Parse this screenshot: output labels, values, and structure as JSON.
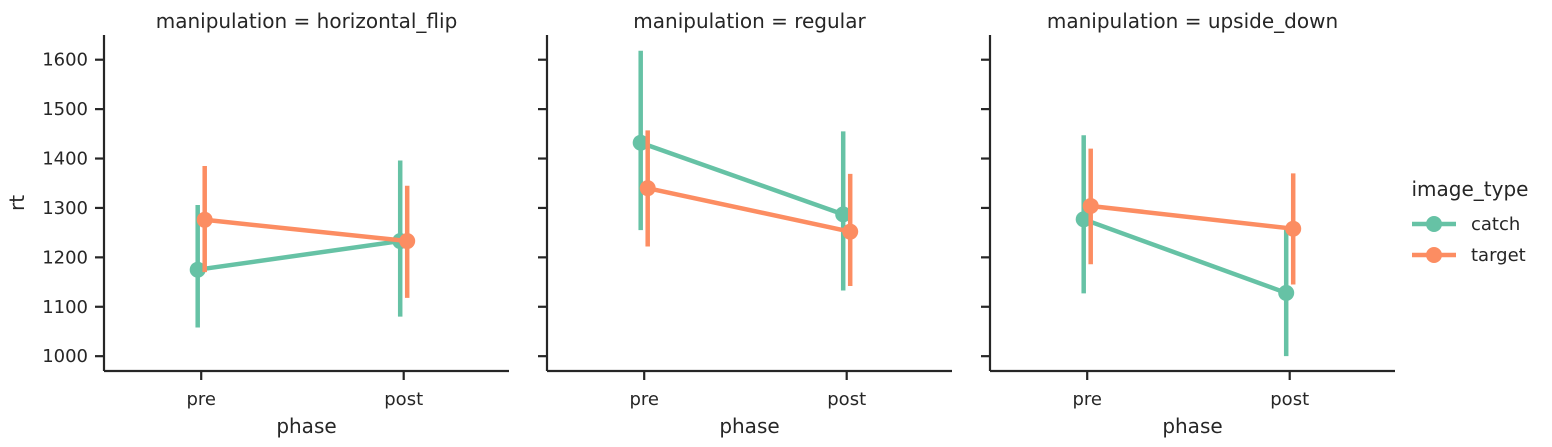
{
  "chart_data": {
    "type": "pointplot",
    "y_label": "rt",
    "x_label": "phase",
    "categories": [
      "pre",
      "post"
    ],
    "ylim": [
      970,
      1650
    ],
    "yticks": [
      1000,
      1100,
      1200,
      1300,
      1400,
      1500,
      1600
    ],
    "grid": false,
    "legend": {
      "title": "image_type",
      "position": "right",
      "entries": [
        {
          "name": "catch",
          "color": "#66c2a5"
        },
        {
          "name": "target",
          "color": "#fc8d62"
        }
      ]
    },
    "panels": [
      {
        "title": "manipulation = horizontal_flip",
        "series": [
          {
            "name": "catch",
            "color": "#66c2a5",
            "values": [
              1175,
              1233
            ],
            "ci_low": [
              1058,
              1080
            ],
            "ci_high": [
              1306,
              1396
            ]
          },
          {
            "name": "target",
            "color": "#fc8d62",
            "values": [
              1276,
              1233
            ],
            "ci_low": [
              1170,
              1118
            ],
            "ci_high": [
              1385,
              1345
            ]
          }
        ]
      },
      {
        "title": "manipulation = regular",
        "series": [
          {
            "name": "catch",
            "color": "#66c2a5",
            "values": [
              1432,
              1287
            ],
            "ci_low": [
              1255,
              1133
            ],
            "ci_high": [
              1618,
              1455
            ]
          },
          {
            "name": "target",
            "color": "#fc8d62",
            "values": [
              1340,
              1252
            ],
            "ci_low": [
              1222,
              1142
            ],
            "ci_high": [
              1457,
              1369
            ]
          }
        ]
      },
      {
        "title": "manipulation = upside_down",
        "series": [
          {
            "name": "catch",
            "color": "#66c2a5",
            "values": [
              1277,
              1128
            ],
            "ci_low": [
              1127,
              1000
            ],
            "ci_high": [
              1447,
              1262
            ]
          },
          {
            "name": "target",
            "color": "#fc8d62",
            "values": [
              1304,
              1258
            ],
            "ci_low": [
              1186,
              1145
            ],
            "ci_high": [
              1420,
              1370
            ]
          }
        ]
      }
    ]
  }
}
